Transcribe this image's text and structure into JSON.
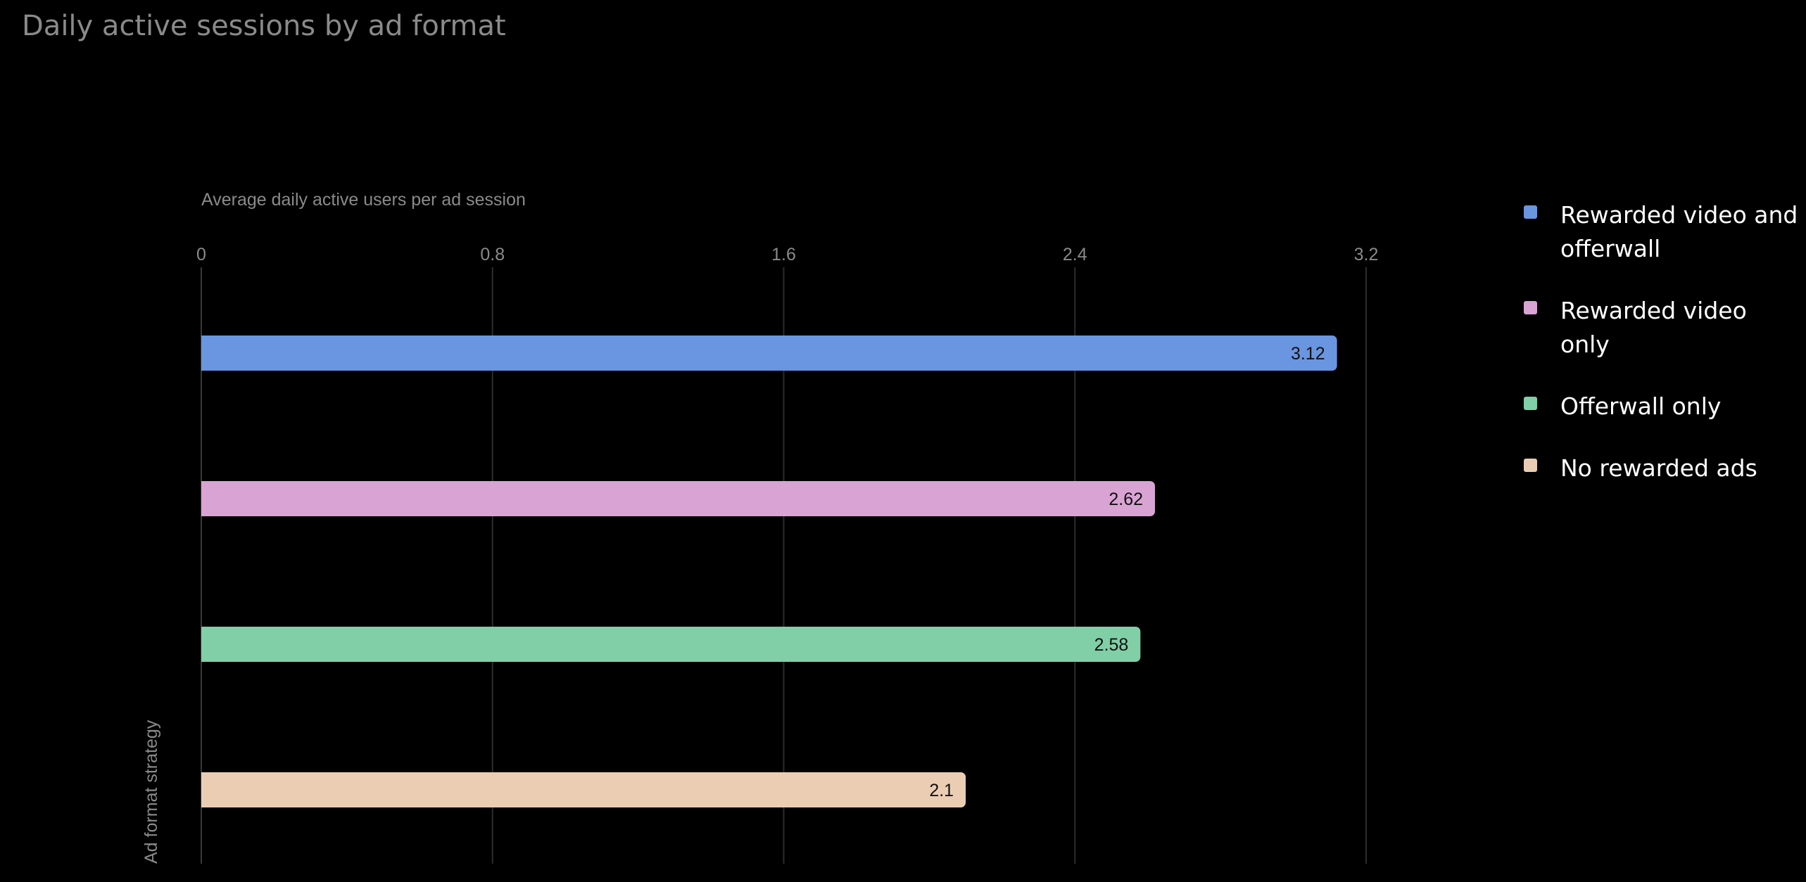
{
  "chart_data": {
    "type": "bar",
    "orientation": "horizontal",
    "title": "Daily active sessions by ad format",
    "xlabel": "Average daily active users per ad session",
    "ylabel": "Ad format strategy",
    "xlim": [
      0,
      3.2
    ],
    "xticks": [
      "0",
      "0.8",
      "1.6",
      "2.4",
      "3.2"
    ],
    "grid": true,
    "legend_position": "top-right",
    "categories": [
      "Rewarded video and offerwall",
      "Rewarded video only",
      "Offerwall only",
      "No rewarded ads"
    ],
    "values": [
      3.12,
      2.62,
      2.58,
      2.1
    ],
    "labels": [
      "3.12",
      "2.62",
      "2.58",
      "2.1"
    ],
    "colors": [
      "#6a95e0",
      "#d9a3d4",
      "#80cfa6",
      "#ebcdb4"
    ]
  }
}
